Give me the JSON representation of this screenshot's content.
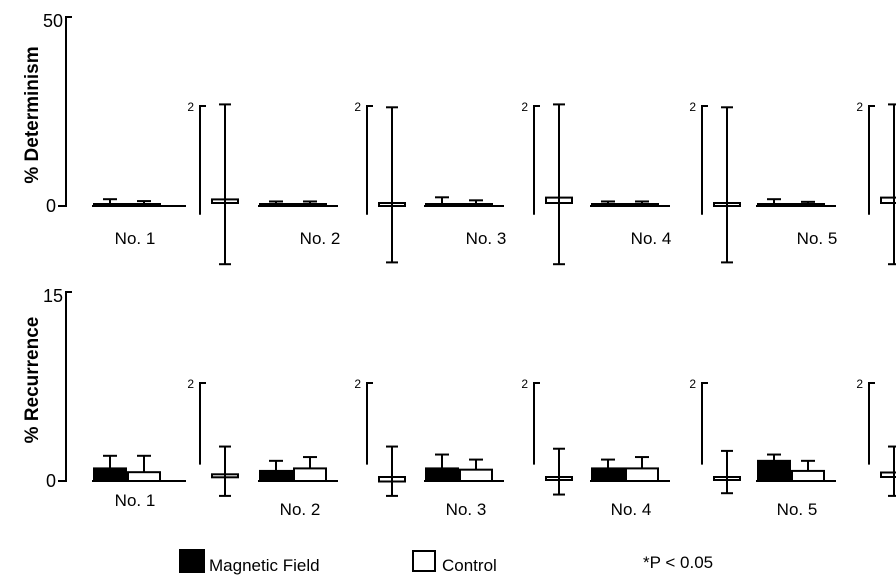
{
  "chart_data": [
    {
      "type": "bar",
      "ylabel": "% Determinism",
      "ylim": [
        0,
        50
      ],
      "yticks": [
        "0",
        "50"
      ],
      "categories": [
        "No. 1",
        "No. 2",
        "No. 3",
        "No. 4",
        "No. 5"
      ],
      "series": [
        {
          "name": "Magnetic Field",
          "values": [
            0.3,
            0.2,
            0.3,
            0.2,
            0.3
          ],
          "errors": [
            1.5,
            1.0,
            2.0,
            1.0,
            1.5
          ]
        },
        {
          "name": "Control",
          "values": [
            0.3,
            0.2,
            0.3,
            0.2,
            0.3
          ],
          "errors": [
            1.0,
            1.0,
            1.2,
            1.0,
            0.8
          ]
        }
      ],
      "insets": [
        {
          "label": "2",
          "value": 0.2,
          "error": 1.7
        },
        {
          "label": "2",
          "value": -0.05,
          "error": 1.65
        },
        {
          "label": "2",
          "value": 0.3,
          "error": 1.7
        },
        {
          "label": "2",
          "value": -0.15,
          "error": 1.65
        },
        {
          "label": "2",
          "value": 0.3,
          "error": 1.7
        }
      ],
      "inset_ylim": [
        -1,
        2
      ]
    },
    {
      "type": "bar",
      "ylabel": "% Recurrence",
      "ylim": [
        0,
        15
      ],
      "yticks": [
        "0",
        "15"
      ],
      "categories": [
        "No. 1",
        "No. 2",
        "No. 3",
        "No. 4",
        "No. 5"
      ],
      "series": [
        {
          "name": "Magnetic Field",
          "values": [
            1.0,
            0.8,
            1.0,
            1.0,
            1.6
          ],
          "errors": [
            1.0,
            0.8,
            1.1,
            0.7,
            0.5
          ]
        },
        {
          "name": "Control",
          "values": [
            0.7,
            1.0,
            0.9,
            1.0,
            0.8
          ],
          "errors": [
            1.3,
            0.9,
            0.8,
            0.9,
            0.8
          ]
        }
      ],
      "insets": [
        {
          "label": "2",
          "value": 0.15,
          "error": 0.7
        },
        {
          "label": "2",
          "value": -0.25,
          "error": 0.7
        },
        {
          "label": "2",
          "value": 0.0,
          "error": 0.65
        },
        {
          "label": "2",
          "value": -0.1,
          "error": 0.6
        },
        {
          "label": "2",
          "value": 0.25,
          "error": 0.7
        }
      ],
      "inset_ylim": [
        -1,
        2
      ]
    }
  ],
  "legend": {
    "magnetic_label": "Magnetic Field",
    "control_label": "Control",
    "significance": "*P < 0.05",
    "magnetic_color": "#000000",
    "control_color": "#ffffff"
  }
}
